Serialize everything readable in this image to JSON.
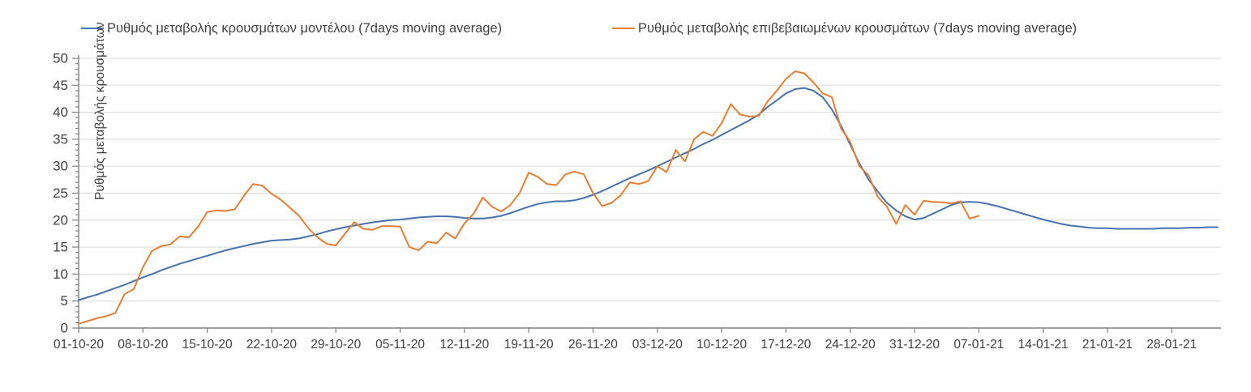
{
  "chart_data": {
    "type": "line",
    "title": "",
    "xlabel": "",
    "ylabel": "Ρυθμός μεταβολής κρουσμάτων",
    "ylim": [
      0,
      50
    ],
    "y_major_step": 5,
    "y_minor_step": 1,
    "y_tick_labels": [
      "0",
      "5",
      "10",
      "15",
      "20",
      "25",
      "30",
      "35",
      "40",
      "45",
      "50"
    ],
    "grid": "horizontal-only",
    "legend_position": "top",
    "start_date": "01-10-20",
    "x_tick_interval_days": 7,
    "x_tick_labels": [
      "01-10-20",
      "08-10-20",
      "15-10-20",
      "22-10-20",
      "29-10-20",
      "05-11-20",
      "12-11-20",
      "19-11-20",
      "26-11-20",
      "03-12-20",
      "10-12-20",
      "17-12-20",
      "24-12-20",
      "31-12-20",
      "07-01-21",
      "14-01-21",
      "21-01-21",
      "28-01-21"
    ],
    "series": [
      {
        "name": "Ρυθμός μεταβολής κρουσμάτων μοντέλου (7days moving average)",
        "color": "#4472AF",
        "values": [
          5.2,
          5.7,
          6.2,
          6.8,
          7.4,
          8.0,
          8.7,
          9.4,
          10.0,
          10.7,
          11.3,
          11.9,
          12.4,
          12.9,
          13.4,
          13.9,
          14.4,
          14.8,
          15.2,
          15.6,
          15.9,
          16.2,
          16.3,
          16.4,
          16.6,
          17.0,
          17.4,
          17.9,
          18.3,
          18.7,
          19.0,
          19.3,
          19.6,
          19.8,
          20.0,
          20.1,
          20.3,
          20.5,
          20.6,
          20.7,
          20.7,
          20.6,
          20.4,
          20.3,
          20.3,
          20.5,
          20.8,
          21.3,
          21.9,
          22.5,
          23.0,
          23.3,
          23.5,
          23.5,
          23.7,
          24.1,
          24.7,
          25.4,
          26.2,
          27.0,
          27.8,
          28.5,
          29.2,
          30.0,
          30.8,
          31.6,
          32.4,
          33.2,
          34.1,
          34.9,
          35.8,
          36.7,
          37.6,
          38.5,
          39.5,
          41.0,
          42.2,
          43.5,
          44.3,
          44.5,
          44.0,
          42.8,
          40.5,
          37.5,
          34.0,
          30.5,
          27.5,
          25.3,
          23.2,
          21.8,
          20.7,
          20.1,
          20.4,
          21.2,
          22.0,
          22.8,
          23.3,
          23.4,
          23.3,
          23.0,
          22.6,
          22.1,
          21.6,
          21.1,
          20.6,
          20.1,
          19.7,
          19.3,
          19.0,
          18.8,
          18.6,
          18.5,
          18.5,
          18.4,
          18.4,
          18.4,
          18.4,
          18.4,
          18.5,
          18.5,
          18.5,
          18.6,
          18.6,
          18.7,
          18.7
        ]
      },
      {
        "name": "Ρυθμός μεταβολής επιβεβαιωμένων κρουσμάτων (7days moving average)",
        "color": "#E67E31",
        "values": [
          0.8,
          1.3,
          1.8,
          2.2,
          2.8,
          6.3,
          7.2,
          11.3,
          14.3,
          15.2,
          15.5,
          17.0,
          16.8,
          18.8,
          21.5,
          21.8,
          21.7,
          22.0,
          24.5,
          26.7,
          26.4,
          24.9,
          23.8,
          22.3,
          20.8,
          18.5,
          16.8,
          15.6,
          15.3,
          17.5,
          19.6,
          18.4,
          18.2,
          18.9,
          18.9,
          18.8,
          15.0,
          14.4,
          16.0,
          15.7,
          17.7,
          16.6,
          19.4,
          21.2,
          24.2,
          22.5,
          21.6,
          22.8,
          25.0,
          28.8,
          28.0,
          26.7,
          26.5,
          28.5,
          29.0,
          28.5,
          25.0,
          22.6,
          23.2,
          24.6,
          27.0,
          26.7,
          27.2,
          30.0,
          28.9,
          33.0,
          30.9,
          35.0,
          36.4,
          35.6,
          38.0,
          41.5,
          39.6,
          39.2,
          39.3,
          42.0,
          44.0,
          46.2,
          47.6,
          47.2,
          45.5,
          43.5,
          42.8,
          37.0,
          34.5,
          30.0,
          28.3,
          24.3,
          22.5,
          19.3,
          22.8,
          21.0,
          23.6,
          23.4,
          23.3,
          23.1,
          23.5,
          20.3,
          20.8
        ]
      }
    ]
  },
  "colors": {
    "background": "#ffffff",
    "gridline": "#d9d9d9",
    "axis": "#7f7f7f",
    "tick_label": "#404040",
    "legend_text": "#404040"
  }
}
